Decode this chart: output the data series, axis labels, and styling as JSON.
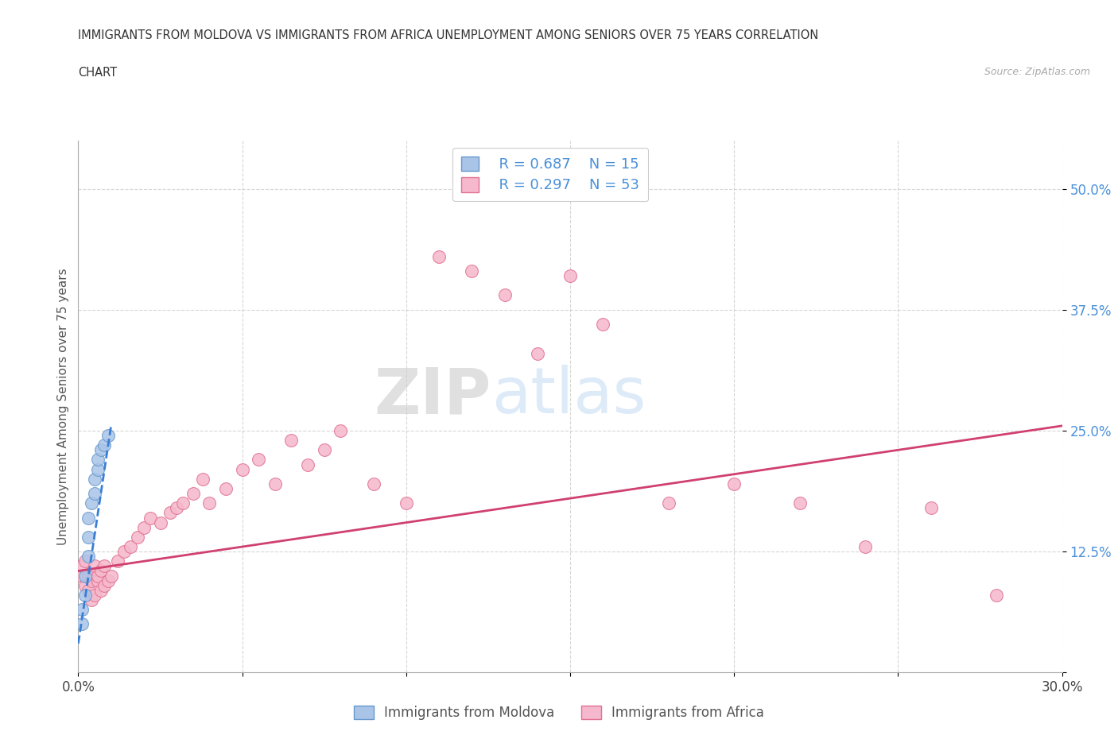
{
  "title_line1": "IMMIGRANTS FROM MOLDOVA VS IMMIGRANTS FROM AFRICA UNEMPLOYMENT AMONG SENIORS OVER 75 YEARS CORRELATION",
  "title_line2": "CHART",
  "source": "Source: ZipAtlas.com",
  "ylabel": "Unemployment Among Seniors over 75 years",
  "xlim": [
    0.0,
    0.3
  ],
  "ylim": [
    0.0,
    0.55
  ],
  "xtick_pos": [
    0.0,
    0.05,
    0.1,
    0.15,
    0.2,
    0.25,
    0.3
  ],
  "xtick_labels": [
    "0.0%",
    "",
    "",
    "",
    "",
    "",
    "30.0%"
  ],
  "ytick_pos": [
    0.0,
    0.125,
    0.25,
    0.375,
    0.5
  ],
  "ytick_labels": [
    "",
    "12.5%",
    "25.0%",
    "37.5%",
    "50.0%"
  ],
  "moldova_color": "#aac4e8",
  "moldova_edge": "#6699cc",
  "africa_color": "#f5b8cc",
  "africa_edge": "#e07090",
  "trendline_moldova_color": "#3a7fd5",
  "trendline_africa_color": "#d04070",
  "legend_R_moldova": "R = 0.687",
  "legend_N_moldova": "N = 15",
  "legend_R_africa": "R = 0.297",
  "legend_N_africa": "N = 53",
  "watermark_zip": "ZIP",
  "watermark_atlas": "atlas",
  "moldova_x": [
    0.001,
    0.001,
    0.002,
    0.002,
    0.003,
    0.003,
    0.003,
    0.004,
    0.005,
    0.005,
    0.006,
    0.006,
    0.007,
    0.008,
    0.009
  ],
  "moldova_y": [
    0.05,
    0.065,
    0.08,
    0.1,
    0.12,
    0.14,
    0.16,
    0.175,
    0.185,
    0.2,
    0.21,
    0.22,
    0.23,
    0.235,
    0.245
  ],
  "africa_x": [
    0.001,
    0.001,
    0.002,
    0.002,
    0.003,
    0.003,
    0.004,
    0.004,
    0.005,
    0.005,
    0.006,
    0.006,
    0.007,
    0.007,
    0.008,
    0.008,
    0.009,
    0.01,
    0.012,
    0.014,
    0.016,
    0.018,
    0.02,
    0.022,
    0.025,
    0.028,
    0.03,
    0.032,
    0.035,
    0.038,
    0.04,
    0.045,
    0.05,
    0.055,
    0.06,
    0.065,
    0.07,
    0.075,
    0.08,
    0.09,
    0.1,
    0.11,
    0.12,
    0.13,
    0.14,
    0.15,
    0.16,
    0.18,
    0.2,
    0.22,
    0.24,
    0.26,
    0.28
  ],
  "africa_y": [
    0.1,
    0.11,
    0.09,
    0.115,
    0.085,
    0.1,
    0.095,
    0.075,
    0.11,
    0.08,
    0.095,
    0.1,
    0.085,
    0.105,
    0.09,
    0.11,
    0.095,
    0.1,
    0.115,
    0.125,
    0.13,
    0.14,
    0.15,
    0.16,
    0.155,
    0.165,
    0.17,
    0.175,
    0.185,
    0.2,
    0.175,
    0.19,
    0.21,
    0.22,
    0.195,
    0.24,
    0.215,
    0.23,
    0.25,
    0.195,
    0.175,
    0.43,
    0.415,
    0.39,
    0.33,
    0.41,
    0.36,
    0.175,
    0.195,
    0.175,
    0.13,
    0.17,
    0.08
  ],
  "trendline_africa_x0": 0.0,
  "trendline_africa_y0": 0.105,
  "trendline_africa_x1": 0.3,
  "trendline_africa_y1": 0.255,
  "trendline_moldova_x0": 0.0,
  "trendline_moldova_y0": 0.03,
  "trendline_moldova_x1": 0.01,
  "trendline_moldova_y1": 0.255
}
